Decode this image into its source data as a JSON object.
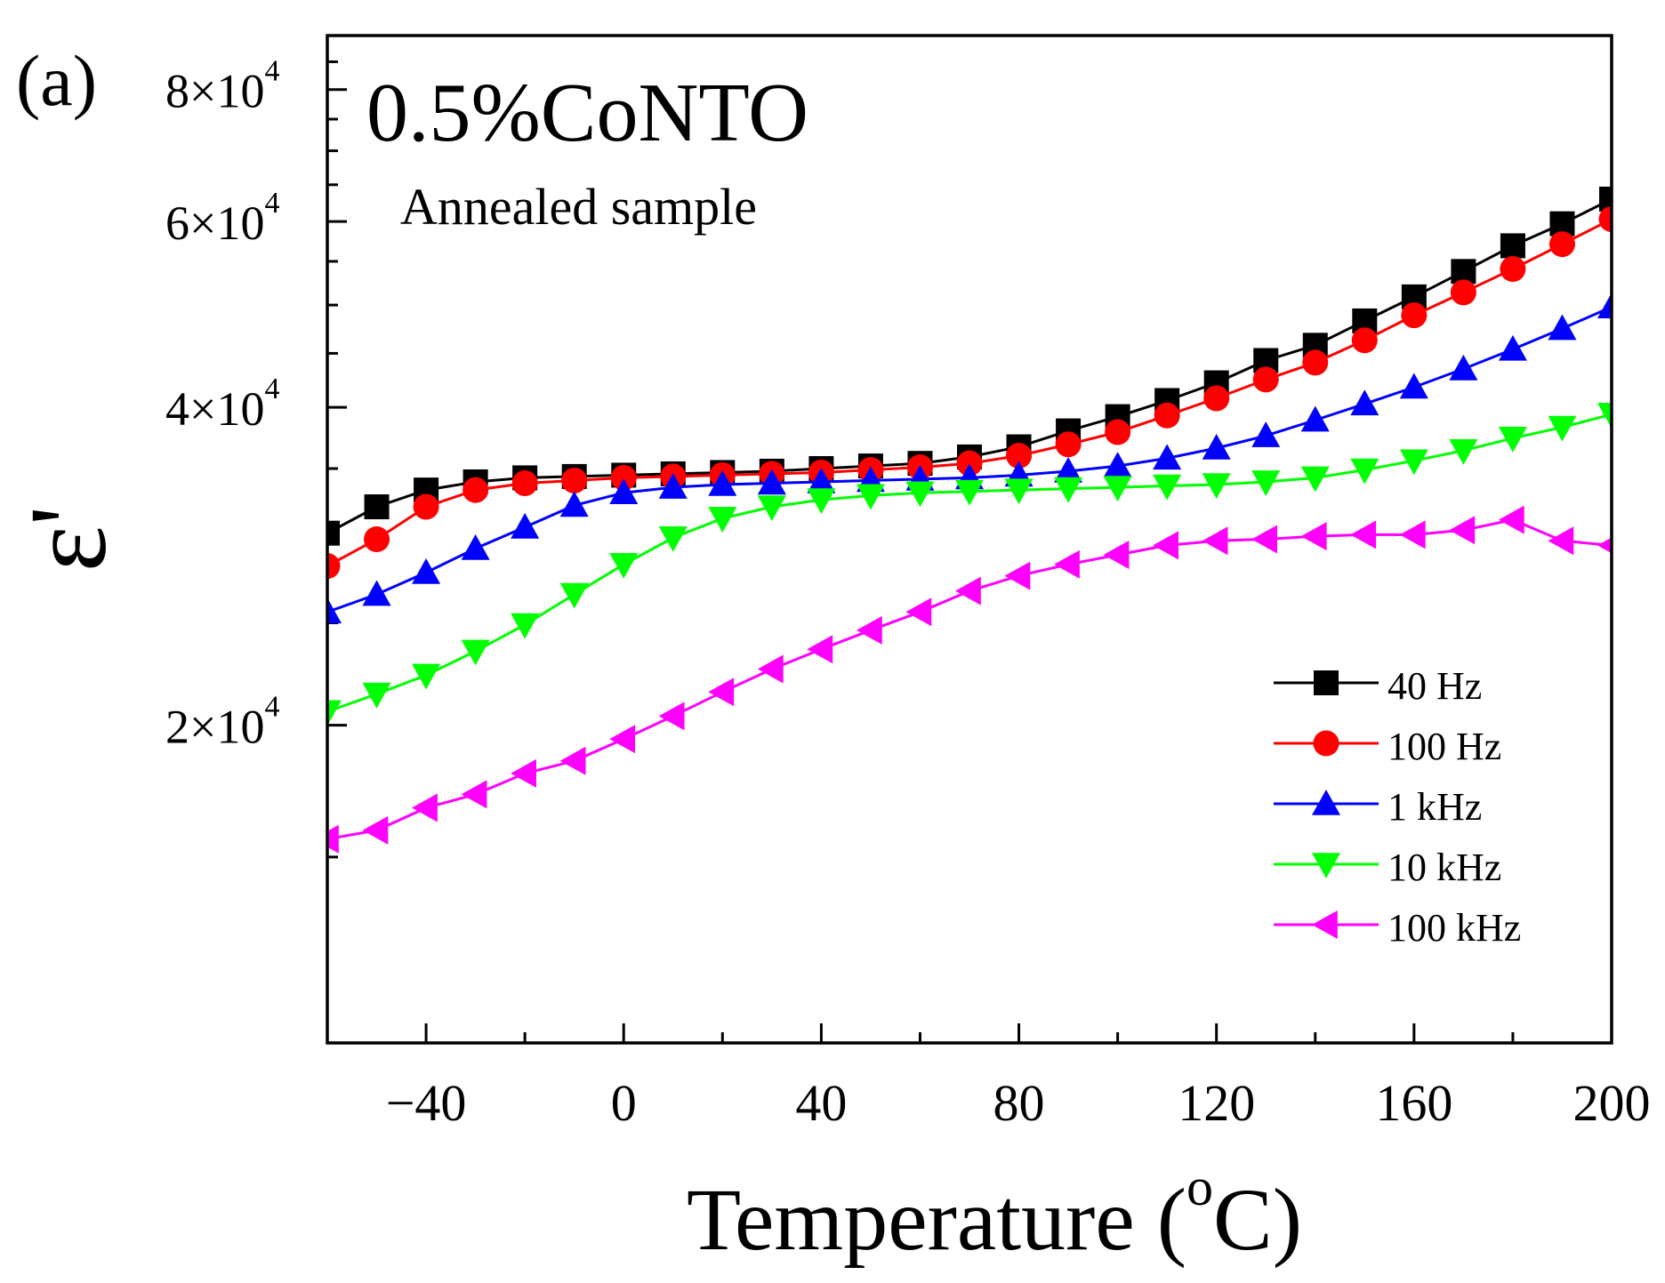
{
  "panel_label": "(a)",
  "chart_data": {
    "type": "line",
    "title": "0.5%CoNTO",
    "subtitle": "Annealed sample",
    "xlabel": "Temperature (",
    "xlabel_sup": "o",
    "xlabel_tail": "C)",
    "ylabel": "ε'",
    "xlim": [
      -60,
      200
    ],
    "ylim": [
      10000,
      90000
    ],
    "yscale": "log",
    "x_ticks": [
      -40,
      0,
      40,
      80,
      120,
      160,
      200
    ],
    "x_tick_labels": [
      "−40",
      "0",
      "40",
      "80",
      "120",
      "160",
      "200"
    ],
    "y_ticks": [
      {
        "value": 20000,
        "mantissa": "2×10",
        "exp": "4"
      },
      {
        "value": 40000,
        "mantissa": "4×10",
        "exp": "4"
      },
      {
        "value": 60000,
        "mantissa": "6×10",
        "exp": "4"
      },
      {
        "value": 80000,
        "mantissa": "8×10",
        "exp": "4"
      }
    ],
    "legend_position": "bottom-right",
    "x": [
      -60,
      -50,
      -40,
      -30,
      -20,
      -10,
      0,
      10,
      20,
      30,
      40,
      50,
      60,
      70,
      80,
      90,
      100,
      110,
      120,
      130,
      140,
      150,
      160,
      170,
      180,
      190,
      200
    ],
    "series": [
      {
        "name": "40 Hz",
        "color": "#000000",
        "marker": "square",
        "values": [
          30400,
          32200,
          33400,
          34000,
          34300,
          34400,
          34500,
          34600,
          34700,
          34800,
          35000,
          35200,
          35400,
          35900,
          36700,
          38000,
          39200,
          40600,
          42200,
          44300,
          45800,
          48300,
          50900,
          53800,
          56900,
          59700,
          63000
        ]
      },
      {
        "name": "100 Hz",
        "color": "#ff0000",
        "marker": "circle",
        "values": [
          28300,
          30000,
          32200,
          33400,
          33900,
          34100,
          34300,
          34400,
          34500,
          34600,
          34700,
          34900,
          35100,
          35400,
          36000,
          36900,
          37900,
          39300,
          40800,
          42500,
          44100,
          46300,
          48900,
          51400,
          54100,
          57100,
          60300
        ]
      },
      {
        "name": "1 kHz",
        "color": "#0000ff",
        "marker": "triangle-up",
        "values": [
          25600,
          26600,
          27900,
          29400,
          30800,
          32300,
          33200,
          33600,
          33800,
          33900,
          34000,
          34100,
          34200,
          34300,
          34500,
          34800,
          35200,
          35800,
          36600,
          37600,
          38900,
          40300,
          41800,
          43500,
          45400,
          47500,
          49800
        ]
      },
      {
        "name": "10 kHz",
        "color": "#00ff00",
        "marker": "triangle-down",
        "values": [
          20600,
          21400,
          22300,
          23500,
          24900,
          26600,
          28400,
          30100,
          31400,
          32200,
          32700,
          33000,
          33200,
          33300,
          33400,
          33500,
          33600,
          33700,
          33800,
          34000,
          34300,
          34900,
          35600,
          36400,
          37400,
          38300,
          39400
        ]
      },
      {
        "name": "100 kHz",
        "color": "#ff00ff",
        "marker": "triangle-left",
        "values": [
          15600,
          15900,
          16700,
          17200,
          18000,
          18500,
          19400,
          20400,
          21500,
          22600,
          23600,
          24600,
          25600,
          26800,
          27700,
          28400,
          29000,
          29600,
          29900,
          30000,
          30200,
          30300,
          30300,
          30600,
          31300,
          29900,
          29600
        ]
      }
    ]
  }
}
